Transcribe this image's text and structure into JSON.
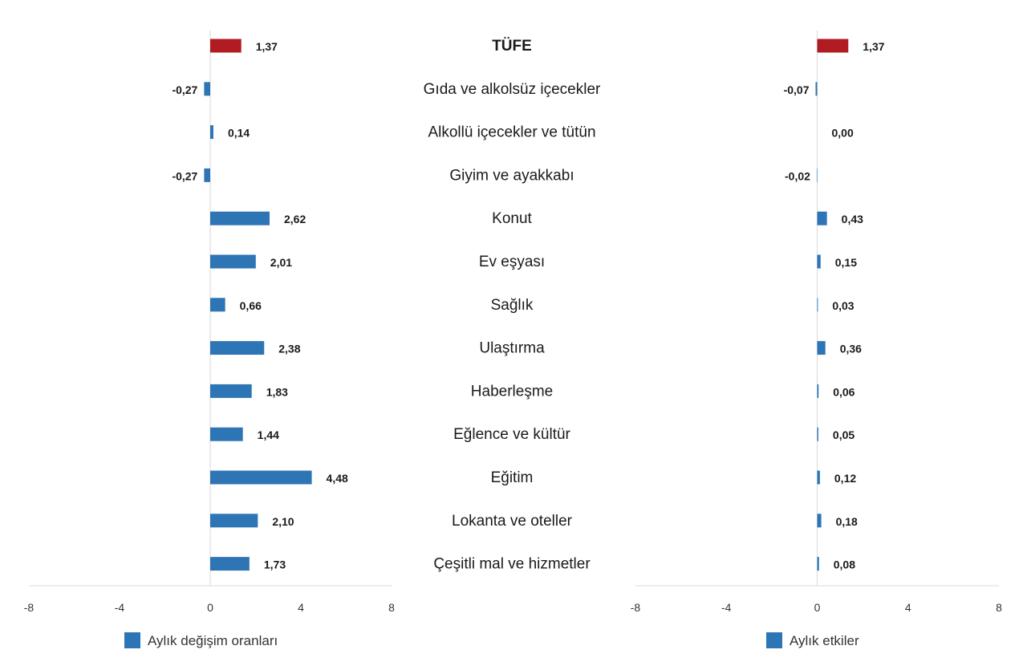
{
  "chart_data": [
    {
      "type": "bar",
      "orientation": "horizontal",
      "categories": [
        "TÜFE",
        "Gıda ve alkolsüz içecekler",
        "Alkollü içecekler ve tütün",
        "Giyim ve ayakkabı",
        "Konut",
        "Ev eşyası",
        "Sağlık",
        "Ulaştırma",
        "Haberleşme",
        "Eğlence ve kültür",
        "Eğitim",
        "Lokanta ve oteller",
        "Çeşitli mal ve hizmetler"
      ],
      "values": [
        1.37,
        -0.27,
        0.14,
        -0.27,
        2.62,
        2.01,
        0.66,
        2.38,
        1.83,
        1.44,
        4.48,
        2.1,
        1.73
      ],
      "value_labels": [
        "1,37",
        "-0,27",
        "0,14",
        "-0,27",
        "2,62",
        "2,01",
        "0,66",
        "2,38",
        "1,83",
        "1,44",
        "4,48",
        "2,10",
        "1,73"
      ],
      "legend": "Aylık değişim oranları",
      "xlim": [
        -8,
        8
      ],
      "ticks": [
        -8,
        -4,
        0,
        4,
        8
      ],
      "tick_labels": [
        "-8",
        "-4",
        "0",
        "4",
        "8"
      ],
      "grid": false,
      "legend_position": "bottom",
      "colors": {
        "highlight": "#b01c22",
        "series": "#2e75b6"
      }
    },
    {
      "type": "bar",
      "orientation": "horizontal",
      "categories": [
        "TÜFE",
        "Gıda ve alkolsüz içecekler",
        "Alkollü içecekler ve tütün",
        "Giyim ve ayakkabı",
        "Konut",
        "Ev eşyası",
        "Sağlık",
        "Ulaştırma",
        "Haberleşme",
        "Eğlence ve kültür",
        "Eğitim",
        "Lokanta ve oteller",
        "Çeşitli mal ve hizmetler"
      ],
      "values": [
        1.37,
        -0.07,
        0.0,
        -0.02,
        0.43,
        0.15,
        0.03,
        0.36,
        0.06,
        0.05,
        0.12,
        0.18,
        0.08
      ],
      "value_labels": [
        "1,37",
        "-0,07",
        "0,00",
        "-0,02",
        "0,43",
        "0,15",
        "0,03",
        "0,36",
        "0,06",
        "0,05",
        "0,12",
        "0,18",
        "0,08"
      ],
      "legend": "Aylık etkiler",
      "xlim": [
        -8,
        8
      ],
      "ticks": [
        -8,
        -4,
        0,
        4,
        8
      ],
      "tick_labels": [
        "-8",
        "-4",
        "0",
        "4",
        "8"
      ],
      "grid": false,
      "legend_position": "bottom",
      "colors": {
        "highlight": "#b01c22",
        "series": "#2e75b6"
      }
    }
  ]
}
